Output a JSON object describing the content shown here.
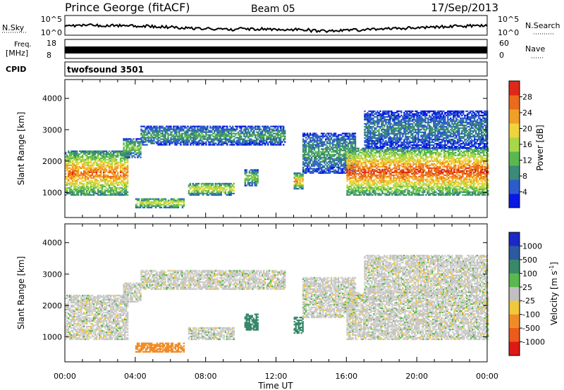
{
  "header": {
    "station": "Prince George (fitACF)",
    "beam": "Beam 05",
    "date": "17/Sep/2013"
  },
  "strip": {
    "nsky_label": "N.Sky",
    "nsearch_label": "N.Search",
    "nsky_ticks": [
      "10^5",
      "10^0"
    ],
    "freq_label_1": "Freq.",
    "freq_label_2": "[MHz]",
    "freq_ticks": [
      "18",
      "8"
    ],
    "nave_label": "Nave",
    "nave_ticks": [
      "60",
      "0"
    ],
    "cpid_label": "CPID",
    "cpid_value": "twofsound 3501"
  },
  "chart_data": [
    {
      "type": "heatmap",
      "name": "power",
      "ylabel": "Slant Range [km]",
      "xlabel": "",
      "ylim": [
        200,
        4600
      ],
      "xlim_hours": [
        0,
        24
      ],
      "y_ticks": [
        1000,
        2000,
        3000,
        4000
      ],
      "colorbar": {
        "label": "Power [dB]",
        "range": [
          0,
          32
        ],
        "ticks": [
          4,
          8,
          12,
          16,
          20,
          24,
          28
        ],
        "colors": [
          "#0a18e6",
          "#2c5ccc",
          "#3c8a7a",
          "#5ab84e",
          "#a8d84a",
          "#f0d43c",
          "#f0a028",
          "#ec6a1c",
          "#e02818"
        ]
      },
      "echo_bands": [
        {
          "x0": 0.0,
          "x1": 3.6,
          "r0": 900,
          "r1": 2300,
          "level": 24
        },
        {
          "x0": 3.3,
          "x1": 4.3,
          "r0": 2100,
          "r1": 2700,
          "level": 14
        },
        {
          "x0": 4.3,
          "x1": 12.5,
          "r0": 2500,
          "r1": 3100,
          "level": 10
        },
        {
          "x0": 4.0,
          "x1": 6.8,
          "r0": 500,
          "r1": 800,
          "level": 18
        },
        {
          "x0": 7.0,
          "x1": 9.6,
          "r0": 900,
          "r1": 1300,
          "level": 18
        },
        {
          "x0": 10.2,
          "x1": 11.0,
          "r0": 1200,
          "r1": 1700,
          "level": 14
        },
        {
          "x0": 13.0,
          "x1": 13.5,
          "r0": 1100,
          "r1": 1600,
          "level": 22
        },
        {
          "x0": 13.5,
          "x1": 16.5,
          "r0": 1600,
          "r1": 2900,
          "level": 10
        },
        {
          "x0": 16.0,
          "x1": 24.0,
          "r0": 900,
          "r1": 2400,
          "level": 26
        },
        {
          "x0": 17.0,
          "x1": 24.0,
          "r0": 2400,
          "r1": 3600,
          "level": 8
        }
      ]
    },
    {
      "type": "heatmap",
      "name": "velocity",
      "ylabel": "Slant Range [km]",
      "xlabel": "Time UT",
      "ylim": [
        200,
        4600
      ],
      "xlim_hours": [
        0,
        24
      ],
      "y_ticks": [
        1000,
        2000,
        3000,
        4000
      ],
      "x_ticks": [
        "00:00",
        "04:00",
        "08:00",
        "12:00",
        "16:00",
        "20:00",
        "00:00"
      ],
      "colorbar": {
        "label": "Velocity [m s",
        "label_sup": "-1",
        "label_end": "]",
        "ticks": [
          "1000",
          "500",
          "100",
          "25",
          "-25",
          "-100",
          "-500",
          "-1000"
        ],
        "colors": [
          "#1a28c8",
          "#2c5aa0",
          "#38886a",
          "#5ab84e",
          "#c0c0c0",
          "#f0c83c",
          "#f08c28",
          "#ec5a1c",
          "#e01818"
        ]
      },
      "echo_bands": [
        {
          "x0": 0.0,
          "x1": 3.6,
          "r0": 900,
          "r1": 2300,
          "level": 0
        },
        {
          "x0": 3.3,
          "x1": 4.3,
          "r0": 2100,
          "r1": 2700,
          "level": 0
        },
        {
          "x0": 4.3,
          "x1": 12.5,
          "r0": 2500,
          "r1": 3100,
          "level": 0
        },
        {
          "x0": 4.0,
          "x1": 6.8,
          "r0": 500,
          "r1": 800,
          "level": -400
        },
        {
          "x0": 7.0,
          "x1": 9.6,
          "r0": 900,
          "r1": 1300,
          "level": 0
        },
        {
          "x0": 10.2,
          "x1": 11.0,
          "r0": 1200,
          "r1": 1700,
          "level": 150
        },
        {
          "x0": 13.0,
          "x1": 13.5,
          "r0": 1100,
          "r1": 1600,
          "level": 150
        },
        {
          "x0": 13.5,
          "x1": 16.5,
          "r0": 1600,
          "r1": 2900,
          "level": 0
        },
        {
          "x0": 16.0,
          "x1": 24.0,
          "r0": 900,
          "r1": 2400,
          "level": 0
        },
        {
          "x0": 17.0,
          "x1": 24.0,
          "r0": 2400,
          "r1": 3600,
          "level": 0
        }
      ]
    }
  ]
}
